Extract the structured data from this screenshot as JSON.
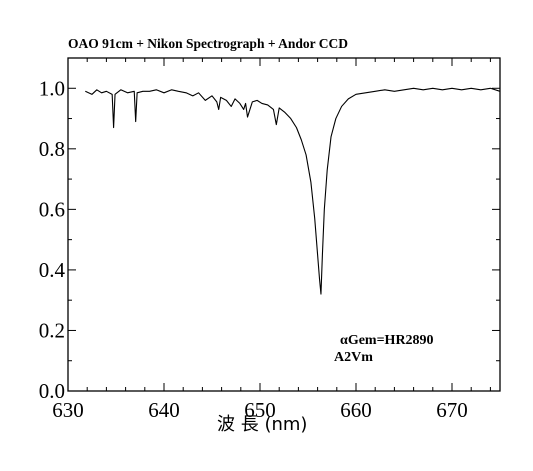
{
  "chart_data": {
    "type": "line",
    "title": "OAO 91cm + Nikon Spectrograph + Andor CCD",
    "xlabel": "波 長 (nm)",
    "ylabel": "",
    "xlim": [
      630,
      675
    ],
    "ylim": [
      0.0,
      1.1
    ],
    "xticks": [
      "630",
      "640",
      "650",
      "660",
      "670"
    ],
    "yticks": [
      "0.0",
      "0.2",
      "0.4",
      "0.6",
      "0.8",
      "1.0"
    ],
    "grid": false,
    "legend": "none",
    "annotations": [
      "αGem=HR2890",
      "A2Vm"
    ],
    "series": [
      {
        "color": "#000000",
        "x": [
          631.8,
          632.5,
          633.0,
          633.5,
          634.0,
          634.6,
          634.75,
          634.9,
          635.5,
          636.2,
          636.9,
          637.05,
          637.2,
          637.8,
          638.5,
          639.2,
          640.0,
          640.8,
          641.5,
          642.3,
          643.0,
          643.6,
          644.3,
          645.0,
          645.5,
          645.7,
          645.9,
          646.5,
          647.0,
          647.4,
          647.9,
          648.3,
          648.5,
          648.7,
          649.2,
          649.7,
          650.2,
          650.8,
          651.4,
          651.7,
          652.0,
          652.6,
          653.2,
          653.8,
          654.3,
          654.8,
          655.3,
          655.7,
          656.0,
          656.2,
          656.35,
          656.5,
          656.7,
          657.0,
          657.4,
          657.9,
          658.5,
          659.2,
          660.0,
          661.0,
          662.0,
          663.0,
          664.0,
          665.0,
          666.0,
          667.0,
          668.0,
          669.0,
          670.0,
          671.0,
          672.0,
          673.0,
          674.0,
          675.0
        ],
        "y": [
          0.99,
          0.98,
          0.995,
          0.985,
          0.99,
          0.98,
          0.87,
          0.98,
          0.995,
          0.985,
          0.99,
          0.89,
          0.985,
          0.99,
          0.99,
          0.995,
          0.985,
          0.995,
          0.99,
          0.985,
          0.975,
          0.985,
          0.96,
          0.975,
          0.955,
          0.93,
          0.97,
          0.96,
          0.94,
          0.965,
          0.95,
          0.93,
          0.95,
          0.905,
          0.955,
          0.96,
          0.95,
          0.945,
          0.93,
          0.88,
          0.935,
          0.92,
          0.9,
          0.87,
          0.83,
          0.78,
          0.69,
          0.57,
          0.45,
          0.37,
          0.32,
          0.45,
          0.6,
          0.73,
          0.84,
          0.9,
          0.94,
          0.965,
          0.98,
          0.985,
          0.99,
          0.995,
          0.99,
          0.995,
          1.0,
          0.995,
          1.0,
          0.995,
          1.0,
          0.995,
          1.0,
          0.995,
          1.0,
          0.99
        ]
      }
    ]
  }
}
